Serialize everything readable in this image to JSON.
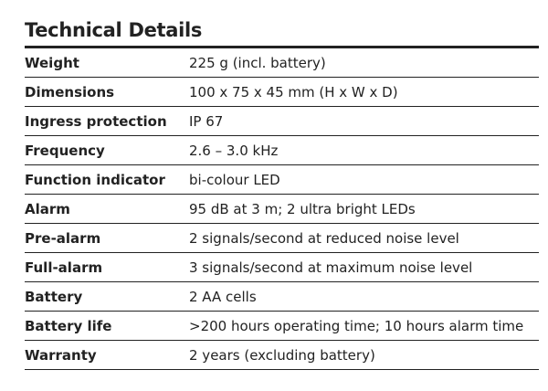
{
  "header": {
    "title": "Technical Details"
  },
  "table": {
    "rows": [
      [
        "Weight",
        "225 g (incl. battery)"
      ],
      [
        "Dimensions",
        "100 x 75 x 45 mm (H x W x D)"
      ],
      [
        "Ingress protection",
        "IP 67"
      ],
      [
        "Frequency",
        "2.6 – 3.0 kHz"
      ],
      [
        "Function indicator",
        "bi-colour LED"
      ],
      [
        "Alarm",
        "95 dB at 3 m; 2 ultra bright LEDs"
      ],
      [
        "Pre-alarm",
        "2 signals/second at reduced noise level"
      ],
      [
        "Full-alarm",
        "3 signals/second at maximum noise level"
      ],
      [
        "Battery",
        "2 AA cells"
      ],
      [
        "Battery life",
        ">200 hours operating time; 10 hours alarm time"
      ],
      [
        "Warranty",
        "2 years (excluding battery)"
      ]
    ]
  }
}
